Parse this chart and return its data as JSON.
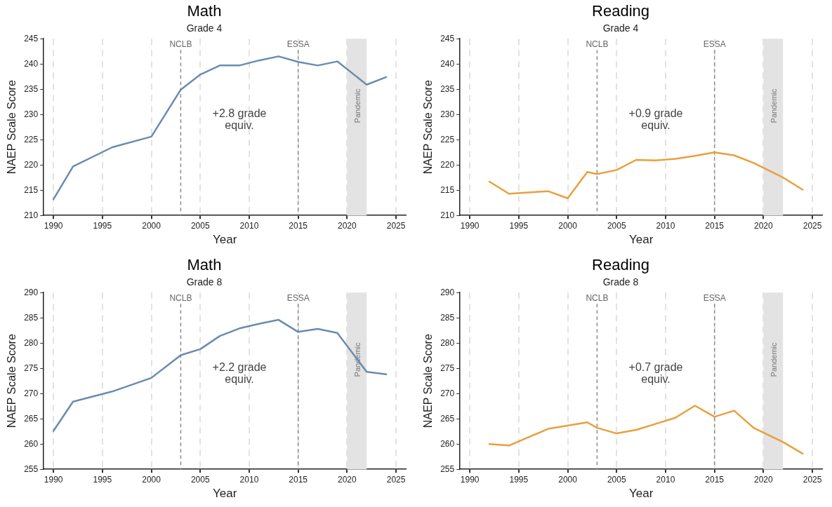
{
  "chart_data": [
    {
      "type": "line",
      "title": "Math",
      "subtitle": "Grade 4",
      "xlabel": "Year",
      "ylabel": "NAEP Scale Score",
      "x": [
        1990,
        1992,
        1996,
        2000,
        2003,
        2005,
        2007,
        2009,
        2011,
        2013,
        2015,
        2017,
        2019,
        2022,
        2024
      ],
      "series": [
        {
          "color": "#6a8caf",
          "values": [
            213.2,
            219.7,
            223.5,
            225.6,
            234.9,
            237.9,
            239.7,
            239.7,
            240.7,
            241.5,
            240.4,
            239.7,
            240.5,
            235.9,
            237.4
          ]
        }
      ],
      "xlim": [
        1989,
        2026
      ],
      "xticks": [
        1990,
        1995,
        2000,
        2005,
        2010,
        2015,
        2020,
        2025
      ],
      "ylim": [
        210,
        245
      ],
      "yticks": [
        210,
        215,
        220,
        225,
        230,
        235,
        240,
        245
      ],
      "ref_lines": [
        {
          "axis": "x",
          "value": 2003,
          "label": "NCLB",
          "color": "#8c8c8c",
          "line_style": "dashed"
        },
        {
          "axis": "x",
          "value": 2015,
          "label": "ESSA",
          "color": "#8c8c8c",
          "line_style": "dashed"
        }
      ],
      "bands": [
        {
          "axis": "x",
          "from": 2020,
          "to": 2022,
          "label": "Pandemic",
          "color": "#e3e3e3"
        }
      ],
      "annotations": [
        "+2.8 grade\nequiv."
      ],
      "grid": "x",
      "legend": false,
      "marker": "none",
      "line_style": "solid"
    },
    {
      "type": "line",
      "title": "Reading",
      "subtitle": "Grade 4",
      "xlabel": "Year",
      "ylabel": "NAEP Scale Score",
      "x": [
        1992,
        1994,
        1998,
        2000,
        2002,
        2003,
        2005,
        2007,
        2009,
        2011,
        2013,
        2015,
        2017,
        2019,
        2022,
        2024
      ],
      "series": [
        {
          "color": "#e8a03c",
          "values": [
            216.7,
            214.3,
            214.8,
            213.4,
            218.6,
            218.2,
            219.0,
            221.0,
            220.9,
            221.2,
            221.8,
            222.5,
            221.9,
            220.4,
            217.5,
            215.1
          ]
        }
      ],
      "xlim": [
        1989,
        2026
      ],
      "xticks": [
        1990,
        1995,
        2000,
        2005,
        2010,
        2015,
        2020,
        2025
      ],
      "ylim": [
        210,
        245
      ],
      "yticks": [
        210,
        215,
        220,
        225,
        230,
        235,
        240,
        245
      ],
      "ref_lines": [
        {
          "axis": "x",
          "value": 2003,
          "label": "NCLB",
          "color": "#8c8c8c",
          "line_style": "dashed"
        },
        {
          "axis": "x",
          "value": 2015,
          "label": "ESSA",
          "color": "#8c8c8c",
          "line_style": "dashed"
        }
      ],
      "bands": [
        {
          "axis": "x",
          "from": 2020,
          "to": 2022,
          "label": "Pandemic",
          "color": "#e3e3e3"
        }
      ],
      "annotations": [
        "+0.9 grade\nequiv."
      ],
      "grid": "x",
      "legend": false,
      "marker": "none",
      "line_style": "solid"
    },
    {
      "type": "line",
      "title": "Math",
      "subtitle": "Grade 8",
      "xlabel": "Year",
      "ylabel": "NAEP Scale Score",
      "x": [
        1990,
        1992,
        1996,
        2000,
        2003,
        2005,
        2007,
        2009,
        2011,
        2013,
        2015,
        2017,
        2019,
        2022,
        2024
      ],
      "series": [
        {
          "color": "#6a8caf",
          "values": [
            262.6,
            268.4,
            270.4,
            273.1,
            277.6,
            278.8,
            281.4,
            282.9,
            283.8,
            284.6,
            282.2,
            282.8,
            282.0,
            274.3,
            273.8
          ]
        }
      ],
      "xlim": [
        1989,
        2026
      ],
      "xticks": [
        1990,
        1995,
        2000,
        2005,
        2010,
        2015,
        2020,
        2025
      ],
      "ylim": [
        255,
        290
      ],
      "yticks": [
        255,
        260,
        265,
        270,
        275,
        280,
        285,
        290
      ],
      "ref_lines": [
        {
          "axis": "x",
          "value": 2003,
          "label": "NCLB",
          "color": "#8c8c8c",
          "line_style": "dashed"
        },
        {
          "axis": "x",
          "value": 2015,
          "label": "ESSA",
          "color": "#8c8c8c",
          "line_style": "dashed"
        }
      ],
      "bands": [
        {
          "axis": "x",
          "from": 2020,
          "to": 2022,
          "label": "Pandemic",
          "color": "#e3e3e3"
        }
      ],
      "annotations": [
        "+2.2 grade\nequiv."
      ],
      "grid": "x",
      "legend": false,
      "marker": "none",
      "line_style": "solid"
    },
    {
      "type": "line",
      "title": "Reading",
      "subtitle": "Grade 8",
      "xlabel": "Year",
      "ylabel": "NAEP Scale Score",
      "x": [
        1992,
        1994,
        1998,
        2002,
        2003,
        2005,
        2007,
        2009,
        2011,
        2013,
        2015,
        2017,
        2019,
        2022,
        2024
      ],
      "series": [
        {
          "color": "#e8a03c",
          "values": [
            260.0,
            259.7,
            263.0,
            264.3,
            263.2,
            262.1,
            262.8,
            264.0,
            265.2,
            267.6,
            265.4,
            266.6,
            263.2,
            260.4,
            258.1
          ]
        }
      ],
      "xlim": [
        1989,
        2026
      ],
      "xticks": [
        1990,
        1995,
        2000,
        2005,
        2010,
        2015,
        2020,
        2025
      ],
      "ylim": [
        255,
        290
      ],
      "yticks": [
        255,
        260,
        265,
        270,
        275,
        280,
        285,
        290
      ],
      "ref_lines": [
        {
          "axis": "x",
          "value": 2003,
          "label": "NCLB",
          "color": "#8c8c8c",
          "line_style": "dashed"
        },
        {
          "axis": "x",
          "value": 2015,
          "label": "ESSA",
          "color": "#8c8c8c",
          "line_style": "dashed"
        }
      ],
      "bands": [
        {
          "axis": "x",
          "from": 2020,
          "to": 2022,
          "label": "Pandemic",
          "color": "#e3e3e3"
        }
      ],
      "annotations": [
        "+0.7 grade\nequiv."
      ],
      "grid": "x",
      "legend": false,
      "marker": "none",
      "line_style": "solid"
    }
  ]
}
